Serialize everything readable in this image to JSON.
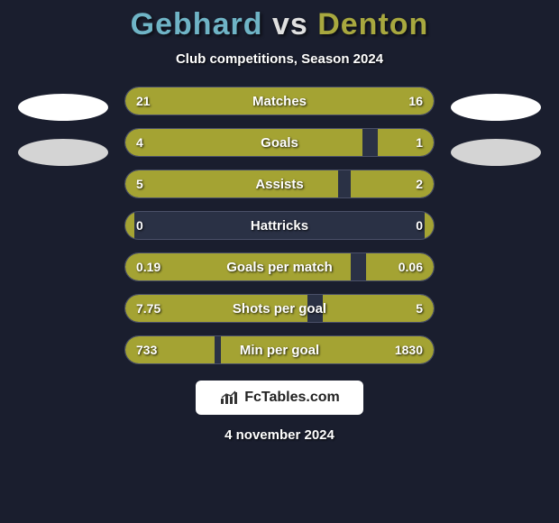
{
  "header": {
    "player1": "Gebhard",
    "vs": "vs",
    "player2": "Denton",
    "player1_color": "#6fb4c6",
    "player2_color": "#a8a83f"
  },
  "subtitle": "Club competitions, Season 2024",
  "bar_style": {
    "fill_color": "#a4a333",
    "track_bg": "#2a3145",
    "track_border": "#4a5068",
    "text_color": "#ffffff"
  },
  "rows": [
    {
      "label": "Matches",
      "left_val": "21",
      "right_val": "16",
      "left_pct": 62,
      "right_pct": 38
    },
    {
      "label": "Goals",
      "left_val": "4",
      "right_val": "1",
      "left_pct": 77,
      "right_pct": 18
    },
    {
      "label": "Assists",
      "left_val": "5",
      "right_val": "2",
      "left_pct": 69,
      "right_pct": 27
    },
    {
      "label": "Hattricks",
      "left_val": "0",
      "right_val": "0",
      "left_pct": 3,
      "right_pct": 3
    },
    {
      "label": "Goals per match",
      "left_val": "0.19",
      "right_val": "0.06",
      "left_pct": 73,
      "right_pct": 22
    },
    {
      "label": "Shots per goal",
      "left_val": "7.75",
      "right_val": "5",
      "left_pct": 59,
      "right_pct": 36
    },
    {
      "label": "Min per goal",
      "left_val": "733",
      "right_val": "1830",
      "left_pct": 29,
      "right_pct": 69
    }
  ],
  "logo": {
    "brand_fc": "Fc",
    "brand_rest": "Tables.com"
  },
  "date": "4 november 2024",
  "page_bg": "#1a1e2e",
  "side_ellipse_colors": {
    "top": "#ffffff",
    "bottom": "#d4d4d4"
  }
}
